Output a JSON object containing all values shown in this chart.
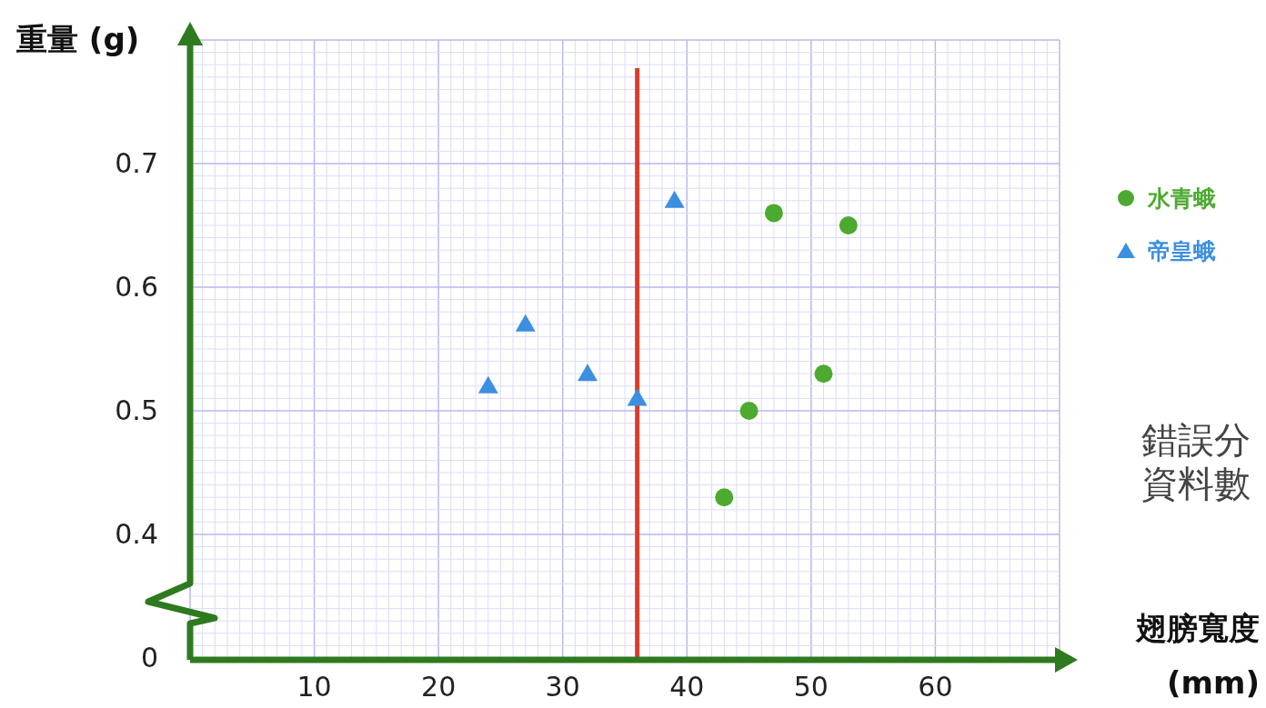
{
  "chart_data": {
    "type": "scatter",
    "xlabel": "翅膀寬度\n(mm)",
    "ylabel": "重量 (g)",
    "xlim": [
      0,
      70
    ],
    "xticks": [
      10,
      20,
      30,
      40,
      50,
      60
    ],
    "ylim": [
      0.3,
      0.8
    ],
    "yticks": [
      {
        "value": 0.3,
        "label": "0"
      },
      0.4,
      0.5,
      0.6,
      0.7
    ],
    "grid": true,
    "legend": "right",
    "series": [
      {
        "name": "水青蛾",
        "color": "#4caa2e",
        "marker": "circle",
        "x": [
          47,
          53,
          51,
          45,
          43
        ],
        "values": [
          0.66,
          0.65,
          0.53,
          0.5,
          0.43
        ]
      },
      {
        "name": "帝皇蛾",
        "color": "#3d8fe0",
        "marker": "triangle",
        "x": [
          39,
          27,
          24,
          32,
          36
        ],
        "values": [
          0.67,
          0.57,
          0.52,
          0.53,
          0.51
        ]
      }
    ],
    "ref_lines": [
      {
        "axis": "x",
        "value": 36,
        "color": "#dd3b2a"
      }
    ],
    "annotations": [
      "錯誤分",
      "資料數"
    ]
  }
}
